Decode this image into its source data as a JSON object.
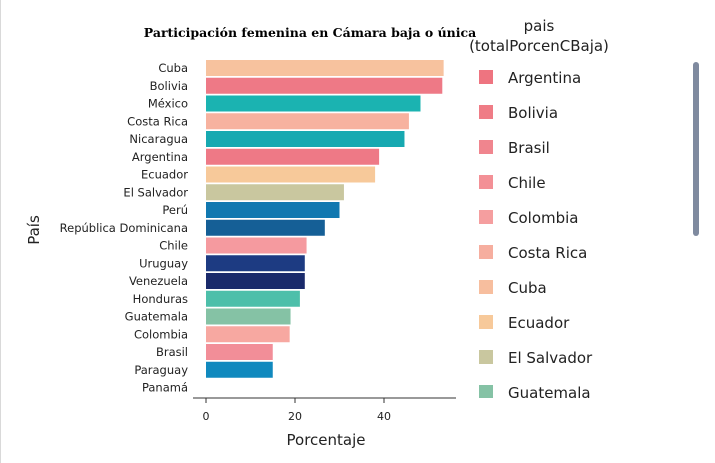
{
  "chart_data": {
    "type": "bar",
    "orientation": "horizontal",
    "title": "Participación femenina en Cámara baja o única",
    "xlabel": "Porcentaje",
    "ylabel": "País",
    "xlim": [
      0,
      55
    ],
    "xticks": [
      0,
      20,
      40
    ],
    "categories": [
      "Cuba",
      "Bolivia",
      "México",
      "Costa Rica",
      "Nicaragua",
      "Argentina",
      "Ecuador",
      "El Salvador",
      "Perú",
      "República Dominicana",
      "Chile",
      "Uruguay",
      "Venezuela",
      "Honduras",
      "Guatemala",
      "Colombia",
      "Brasil",
      "Paraguay",
      "Panamá"
    ],
    "values": [
      53.4,
      53.1,
      48.2,
      45.6,
      44.6,
      38.9,
      38.0,
      31.0,
      30.0,
      26.7,
      22.6,
      22.2,
      22.2,
      21.1,
      19.0,
      18.8,
      15.0,
      15.0,
      0
    ],
    "colors": [
      "#F7C29E",
      "#EE7986",
      "#1BB3B1",
      "#F7B29F",
      "#17A9B1",
      "#EE7986",
      "#F7C99A",
      "#C9C79F",
      "#1178B0",
      "#155F96",
      "#F59A9F",
      "#1D3B82",
      "#1A2A6B",
      "#4DBFAA",
      "#85C2A5",
      "#F7A8A1",
      "#F28E98",
      "#1089BE",
      "#ffffff"
    ],
    "legend": {
      "title_line1": "pais",
      "title_line2": "(totalPorcenCBaja)",
      "placement": "right",
      "items": [
        {
          "label": "Argentina",
          "color": "#EE7480"
        },
        {
          "label": "Bolivia",
          "color": "#EF7C86"
        },
        {
          "label": "Brasil",
          "color": "#F0858E"
        },
        {
          "label": "Chile",
          "color": "#F39096"
        },
        {
          "label": "Colombia",
          "color": "#F59E9F"
        },
        {
          "label": "Costa Rica",
          "color": "#F6AE9F"
        },
        {
          "label": "Cuba",
          "color": "#F7BE9E"
        },
        {
          "label": "Ecuador",
          "color": "#F7C99A"
        },
        {
          "label": "El Salvador",
          "color": "#C9C79F"
        },
        {
          "label": "Guatemala",
          "color": "#85C2A5"
        }
      ]
    },
    "grid": false
  }
}
